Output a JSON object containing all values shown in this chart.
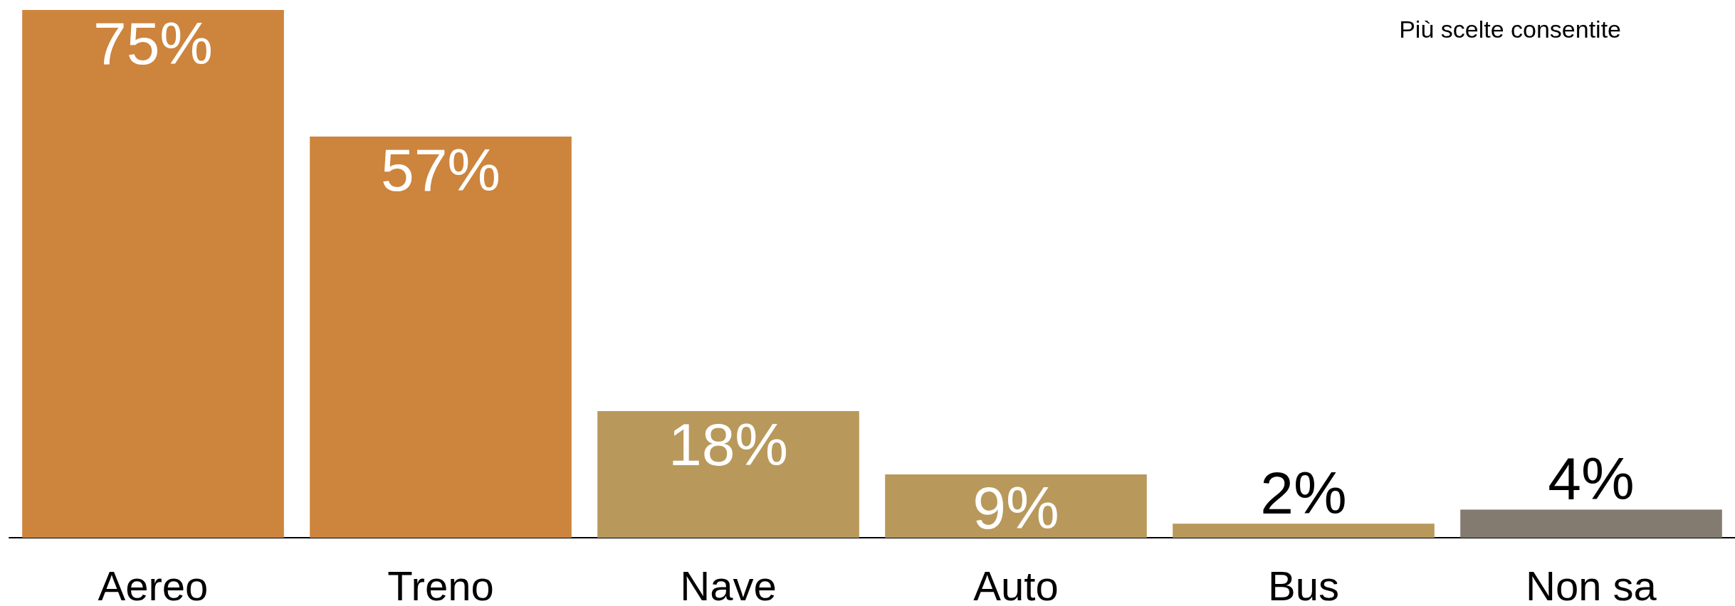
{
  "chart_data": {
    "type": "bar",
    "categories": [
      "Aereo",
      "Treno",
      "Nave",
      "Auto",
      "Bus",
      "Non sa"
    ],
    "values": [
      75,
      57,
      18,
      9,
      2,
      4
    ],
    "colors": [
      "#cd843d",
      "#cd843d",
      "#b8995b",
      "#b8995b",
      "#b8995b",
      "#837a70"
    ],
    "value_labels": [
      "75%",
      "57%",
      "18%",
      "9%",
      "2%",
      "4%"
    ],
    "annotations": [
      "Più scelte consentite"
    ],
    "grid": false
  }
}
